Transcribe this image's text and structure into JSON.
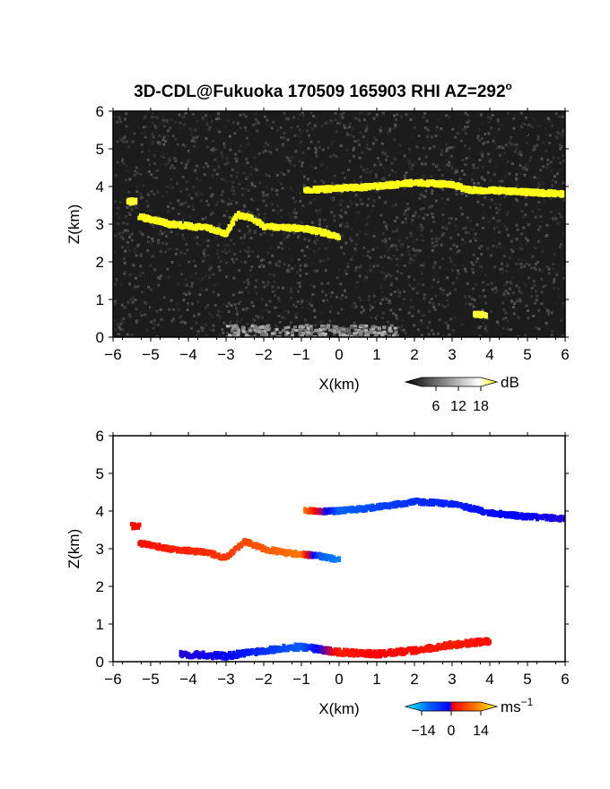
{
  "title": "3D-CDL@Fukuoka 170509 165903 RHI AZ=292",
  "title_suffix": "o",
  "chart_data": [
    {
      "type": "heatmap",
      "panel": "reflectivity",
      "xlabel": "X(km)",
      "ylabel": "Z(km)",
      "xlim": [
        -6,
        6
      ],
      "ylim": [
        0,
        6
      ],
      "xticks": [
        "−6",
        "−5",
        "−4",
        "−3",
        "−2",
        "−1",
        "0",
        "1",
        "2",
        "3",
        "4",
        "5",
        "6"
      ],
      "yticks": [
        "0",
        "1",
        "2",
        "3",
        "4",
        "5",
        "6"
      ],
      "background": "#1c1c1c",
      "colorbar": {
        "unit": "dB",
        "ticks": [
          "6",
          "12",
          "18"
        ],
        "range": [
          0,
          21
        ],
        "colors": [
          "#000000",
          "#ffffff",
          "#ffff00"
        ]
      },
      "features": [
        {
          "name": "upper cloud layer",
          "x": [
            -0.9,
            0,
            1,
            2,
            3,
            3.5,
            4,
            5,
            6
          ],
          "z": [
            3.9,
            3.95,
            4.0,
            4.1,
            4.05,
            3.9,
            3.9,
            3.85,
            3.8
          ],
          "value": 20
        },
        {
          "name": "lower cloud layer",
          "x": [
            -5.3,
            -4.5,
            -3.5,
            -3,
            -2.7,
            -2.3,
            -2,
            -1.5,
            -1,
            -0.5,
            0
          ],
          "z": [
            3.2,
            3.0,
            2.9,
            2.75,
            3.25,
            3.15,
            2.95,
            2.9,
            2.9,
            2.8,
            2.65
          ],
          "value": 20
        },
        {
          "name": "isolated echo",
          "x": [
            -5.6,
            -5.4
          ],
          "z": [
            3.6,
            3.6
          ],
          "value": 19
        },
        {
          "name": "small echo",
          "x": [
            3.6,
            3.9
          ],
          "z": [
            0.6,
            0.6
          ],
          "value": 19
        }
      ]
    },
    {
      "type": "heatmap",
      "panel": "doppler velocity",
      "xlabel": "X(km)",
      "ylabel": "Z(km)",
      "xlim": [
        -6,
        6
      ],
      "ylim": [
        0,
        6
      ],
      "xticks": [
        "−6",
        "−5",
        "−4",
        "−3",
        "−2",
        "−1",
        "0",
        "1",
        "2",
        "3",
        "4",
        "5",
        "6"
      ],
      "yticks": [
        "0",
        "1",
        "2",
        "3",
        "4",
        "5",
        "6"
      ],
      "background": "#ffffff",
      "colorbar": {
        "unit": "ms",
        "unit_exponent": "−1",
        "ticks": [
          "−14",
          "0",
          "14"
        ],
        "range": [
          -21,
          21
        ],
        "colors": [
          "#00ffff",
          "#0066ff",
          "#0000ff",
          "#ff0000",
          "#ff8000",
          "#ffff00"
        ]
      },
      "features": [
        {
          "name": "upper layer velocity",
          "x": [
            -0.9,
            0,
            1,
            2,
            3,
            4,
            5,
            6
          ],
          "z": [
            4.0,
            4.0,
            4.1,
            4.25,
            4.2,
            3.95,
            3.85,
            3.8
          ],
          "v": [
            12,
            -12,
            -10,
            -8,
            -7,
            -5,
            -4,
            -3
          ]
        },
        {
          "name": "lower layer velocity",
          "x": [
            -5.3,
            -4.5,
            -3.5,
            -3,
            -2.5,
            -2,
            -1.5,
            -1,
            -0.5,
            0
          ],
          "z": [
            3.15,
            3.0,
            2.9,
            2.75,
            3.2,
            3.0,
            2.9,
            2.85,
            2.8,
            2.7
          ],
          "v": [
            5,
            6,
            7,
            8,
            9,
            10,
            11,
            12,
            -12,
            -14
          ]
        },
        {
          "name": "isolated echo velocity",
          "x": [
            -5.5,
            -5.3
          ],
          "z": [
            3.6,
            3.6
          ],
          "v": [
            5,
            5
          ]
        },
        {
          "name": "near-surface velocity",
          "x": [
            -4.2,
            -3,
            -2,
            -1,
            0,
            1,
            2,
            3,
            4
          ],
          "z": [
            0.2,
            0.15,
            0.3,
            0.4,
            0.25,
            0.2,
            0.3,
            0.45,
            0.55
          ],
          "v": [
            -3,
            -4,
            -8,
            -12,
            6,
            4,
            5,
            6,
            5
          ]
        }
      ]
    }
  ]
}
